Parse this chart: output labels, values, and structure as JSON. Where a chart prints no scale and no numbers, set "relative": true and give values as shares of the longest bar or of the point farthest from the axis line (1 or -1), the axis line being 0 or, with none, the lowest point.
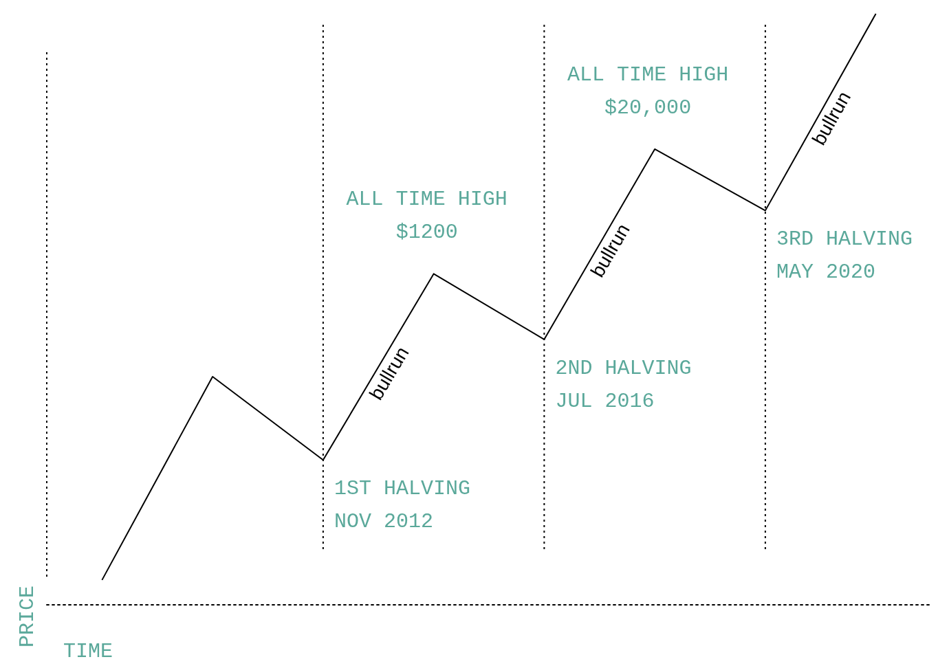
{
  "chart_data": {
    "type": "line",
    "relative": true,
    "xlabel": "TIME",
    "ylabel": "PRICE",
    "categories": [
      null,
      null,
      null,
      null,
      null,
      null,
      null,
      null
    ],
    "series": [
      {
        "color": "#000000",
        "values": [
          0.042,
          0.386,
          0.245,
          0.56,
          0.449,
          0.771,
          0.667,
          1
        ]
      }
    ],
    "annotations": [
      "ALL TIME HIGH\n$1200",
      "ALL TIME HIGH\n$20,000",
      "1ST HALVING\nNOV 2012",
      "2ND HALVING\nJUL 2016",
      "3RD HALVING\nMAY 2020",
      "bullrun",
      "bullrun",
      "bullrun"
    ],
    "grid": "x",
    "marker": "none",
    "line_style": "solid"
  }
}
